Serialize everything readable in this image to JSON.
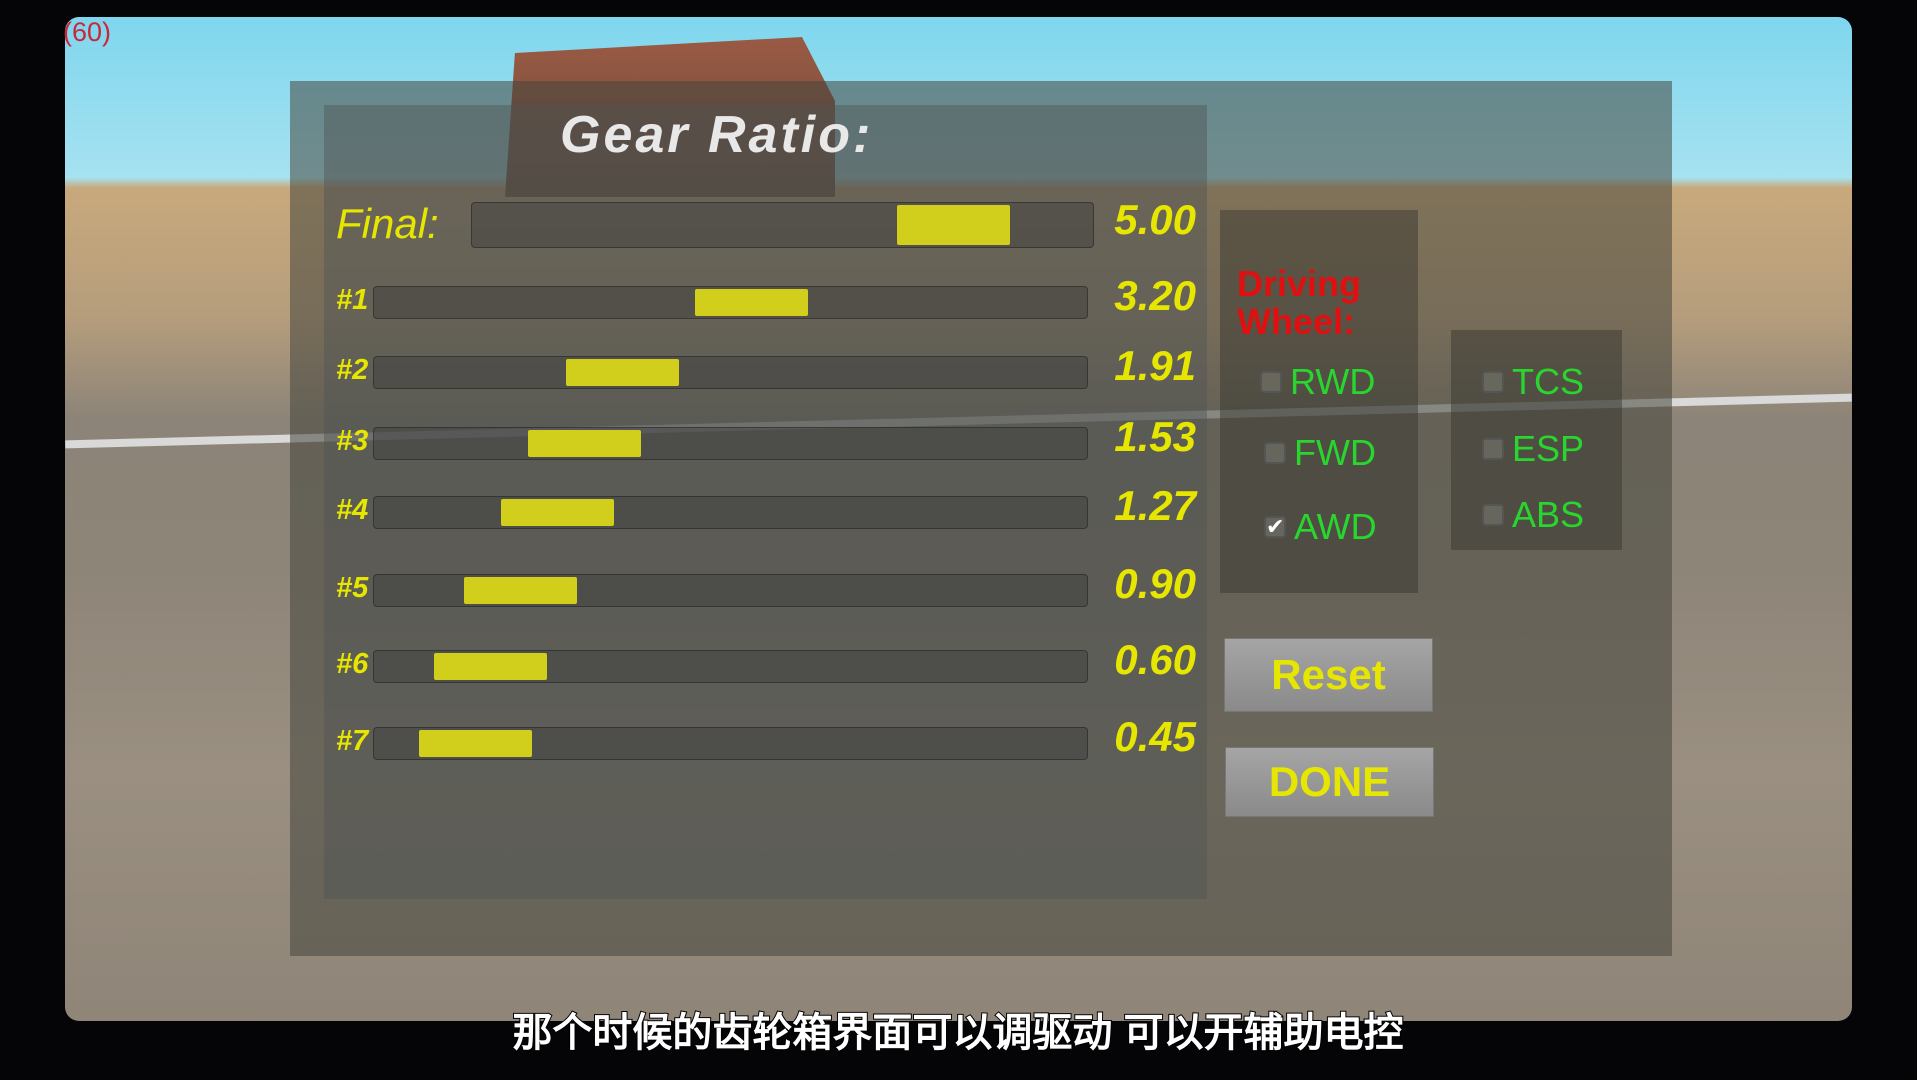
{
  "fps": "(60)",
  "title": "Gear Ratio:",
  "slider_range": [
    0,
    6
  ],
  "final": {
    "label": "Final:",
    "value": 5.0,
    "display": "5.00"
  },
  "gears": [
    {
      "label": "#1",
      "value": 3.2,
      "display": "3.20"
    },
    {
      "label": "#2",
      "value": 1.91,
      "display": "1.91"
    },
    {
      "label": "#3",
      "value": 1.53,
      "display": "1.53"
    },
    {
      "label": "#4",
      "value": 1.27,
      "display": "1.27"
    },
    {
      "label": "#5",
      "value": 0.9,
      "display": "0.90"
    },
    {
      "label": "#6",
      "value": 0.6,
      "display": "0.60"
    },
    {
      "label": "#7",
      "value": 0.45,
      "display": "0.45"
    }
  ],
  "driving_wheel": {
    "heading": "Driving Wheel:",
    "options": [
      {
        "label": "RWD",
        "checked": false
      },
      {
        "label": "FWD",
        "checked": false
      },
      {
        "label": "AWD",
        "checked": true
      }
    ]
  },
  "assists": [
    {
      "label": "TCS",
      "checked": false
    },
    {
      "label": "ESP",
      "checked": false
    },
    {
      "label": "ABS",
      "checked": false
    }
  ],
  "buttons": {
    "reset": "Reset",
    "done": "DONE"
  },
  "subtitle": "那个时候的齿轮箱界面可以调驱动 可以开辅助电控",
  "colors": {
    "accent": "#e6e600",
    "toggle_text": "#29d62e",
    "heading": "#e01010"
  }
}
